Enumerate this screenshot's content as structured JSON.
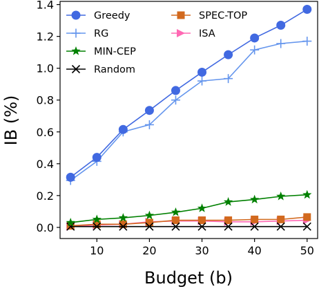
{
  "chart_data": {
    "type": "line",
    "title": "",
    "xlabel": "Budget (b)",
    "ylabel": "IB (%)",
    "x": [
      5,
      10,
      15,
      20,
      25,
      30,
      35,
      40,
      45,
      50
    ],
    "xlim": [
      3,
      52
    ],
    "ylim": [
      -0.07,
      1.42
    ],
    "xticks": [
      "10",
      "20",
      "30",
      "40",
      "50"
    ],
    "yticks": [
      "0.0",
      "0.2",
      "0.4",
      "0.6",
      "0.8",
      "1.0",
      "1.2",
      "1.4"
    ],
    "grid": false,
    "legend_position": "top-left",
    "series": [
      {
        "name": "Greedy",
        "color": "#4169E1",
        "marker": "circle",
        "values": [
          0.315,
          0.44,
          0.615,
          0.735,
          0.86,
          0.975,
          1.085,
          1.19,
          1.27,
          1.37
        ]
      },
      {
        "name": "RG",
        "color": "#6495ED",
        "marker": "plus",
        "values": [
          0.295,
          0.415,
          0.6,
          0.645,
          0.8,
          0.92,
          0.935,
          1.115,
          1.155,
          1.17
        ]
      },
      {
        "name": "MIN-CEP",
        "color": "#008000",
        "marker": "star",
        "values": [
          0.03,
          0.05,
          0.06,
          0.075,
          0.095,
          0.12,
          0.16,
          0.175,
          0.195,
          0.205
        ]
      },
      {
        "name": "Random",
        "color": "#000000",
        "marker": "x",
        "values": [
          0.005,
          0.005,
          0.005,
          0.005,
          0.005,
          0.005,
          0.005,
          0.005,
          0.005,
          0.005
        ]
      },
      {
        "name": "SPEC-TOP",
        "color": "#D2691E",
        "marker": "square",
        "values": [
          0.01,
          0.02,
          0.02,
          0.03,
          0.045,
          0.045,
          0.045,
          0.05,
          0.05,
          0.065
        ]
      },
      {
        "name": "ISA",
        "color": "#FF69B4",
        "marker": "triangle-right",
        "values": [
          0.005,
          0.015,
          0.02,
          0.035,
          0.04,
          0.04,
          0.035,
          0.035,
          0.04,
          0.045
        ]
      }
    ]
  }
}
